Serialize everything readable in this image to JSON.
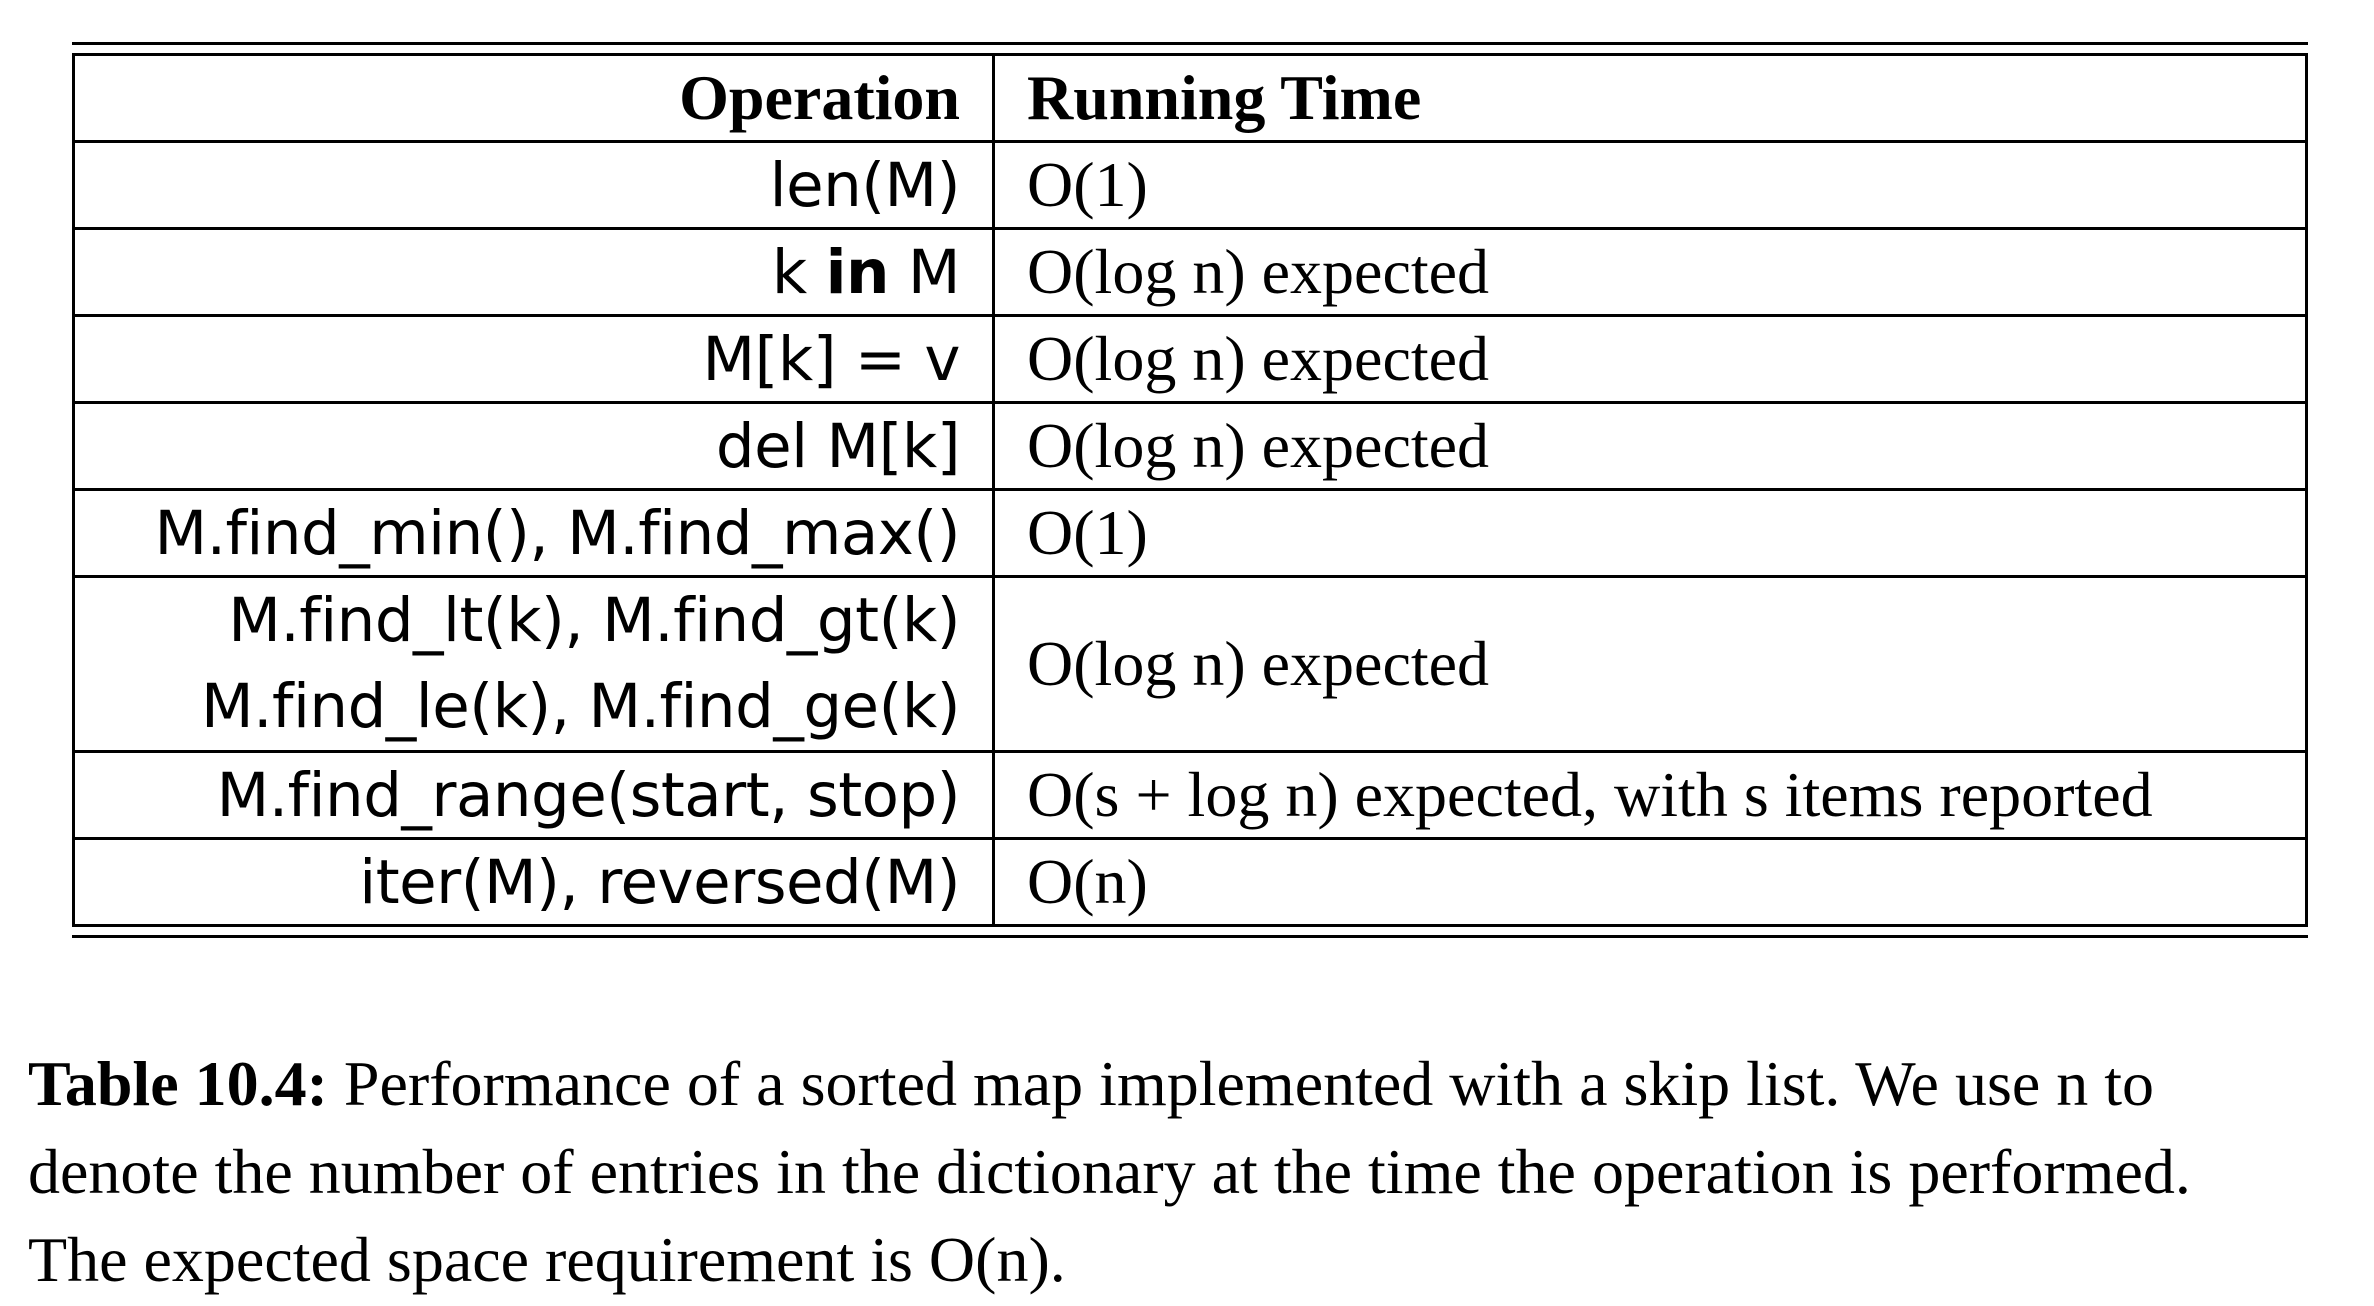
{
  "table": {
    "headers": [
      "Operation",
      "Running Time"
    ],
    "rows": [
      {
        "operation": [
          "len(M)"
        ],
        "running_time": "O(1)"
      },
      {
        "operation_parts": [
          "k ",
          "in",
          " M"
        ],
        "running_time": "O(log n) expected"
      },
      {
        "operation": [
          "M[k] = v"
        ],
        "running_time": "O(log n) expected"
      },
      {
        "operation": [
          "del M[k]"
        ],
        "running_time": "O(log n) expected"
      },
      {
        "operation": [
          "M.find_min(), M.find_max()"
        ],
        "running_time": "O(1)"
      },
      {
        "operation": [
          "M.find_lt(k), M.find_gt(k)",
          "M.find_le(k), M.find_ge(k)"
        ],
        "running_time": "O(log n) expected"
      },
      {
        "operation": [
          "M.find_range(start, stop)"
        ],
        "running_time": "O(s + log n) expected, with s items reported"
      },
      {
        "operation": [
          "iter(M), reversed(M)"
        ],
        "running_time": "O(n)"
      }
    ]
  },
  "caption": {
    "label": "Table 10.4:",
    "line1": " Performance of a sorted map implemented with a skip list. We use n to",
    "line2": "denote the number of entries in the dictionary at the time the operation is performed.",
    "line3": "The expected space requirement is O(n)."
  }
}
